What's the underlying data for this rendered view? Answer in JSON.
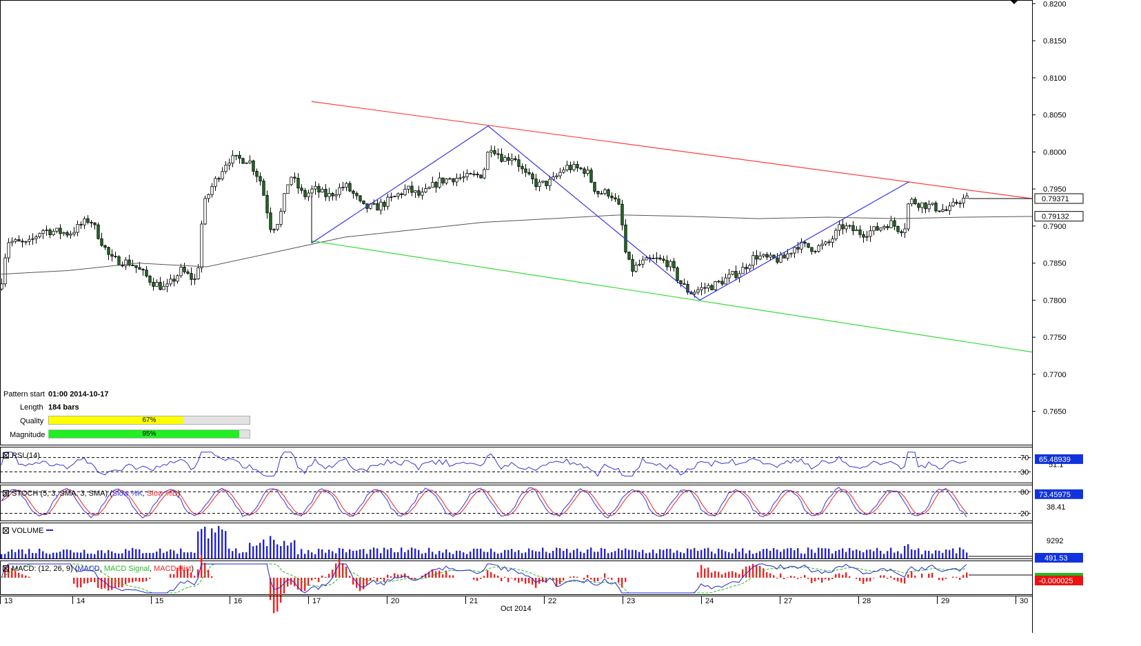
{
  "chart_data": {
    "type": "candlestick",
    "instrument_axis": {
      "ylim": [
        0.7605,
        0.8205
      ],
      "ticks": [
        "0.8200",
        "0.8150",
        "0.8100",
        "0.8050",
        "0.8000",
        "0.7950",
        "0.7900",
        "0.7850",
        "0.7800",
        "0.7750",
        "0.7700",
        "0.7650"
      ],
      "last_price": "0.79371",
      "ma_value": "0.79132"
    },
    "x_axis": {
      "day_labels": [
        "13",
        "14",
        "15",
        "16",
        "17",
        "20",
        "21",
        "22",
        "23",
        "24",
        "27",
        "28",
        "29",
        "30"
      ],
      "month_label": "Oct 2014"
    },
    "price_path": [
      [
        0,
        0.7815
      ],
      [
        10,
        0.788
      ],
      [
        40,
        0.7875
      ],
      [
        60,
        0.7895
      ],
      [
        100,
        0.789
      ],
      [
        130,
        0.791
      ],
      [
        160,
        0.7855
      ],
      [
        190,
        0.785
      ],
      [
        220,
        0.7825
      ],
      [
        240,
        0.7815
      ],
      [
        262,
        0.784
      ],
      [
        285,
        0.7825
      ],
      [
        294,
        0.7925
      ],
      [
        305,
        0.795
      ],
      [
        330,
        0.799
      ],
      [
        360,
        0.799
      ],
      [
        378,
        0.796
      ],
      [
        393,
        0.7895
      ],
      [
        405,
        0.791
      ],
      [
        420,
        0.797
      ],
      [
        440,
        0.794
      ],
      [
        455,
        0.795
      ],
      [
        475,
        0.794
      ],
      [
        500,
        0.7955
      ],
      [
        515,
        0.794
      ],
      [
        525,
        0.7925
      ],
      [
        545,
        0.7925
      ],
      [
        565,
        0.7935
      ],
      [
        590,
        0.795
      ],
      [
        610,
        0.794
      ],
      [
        635,
        0.796
      ],
      [
        655,
        0.7965
      ],
      [
        675,
        0.7965
      ],
      [
        700,
        0.797
      ],
      [
        710,
        0.801
      ],
      [
        730,
        0.799
      ],
      [
        745,
        0.7995
      ],
      [
        760,
        0.797
      ],
      [
        780,
        0.7955
      ],
      [
        800,
        0.796
      ],
      [
        820,
        0.798
      ],
      [
        850,
        0.7975
      ],
      [
        865,
        0.7945
      ],
      [
        885,
        0.7945
      ],
      [
        900,
        0.792
      ],
      [
        905,
        0.787
      ],
      [
        915,
        0.784
      ],
      [
        930,
        0.785
      ],
      [
        950,
        0.7855
      ],
      [
        970,
        0.785
      ],
      [
        985,
        0.7825
      ],
      [
        1000,
        0.781
      ],
      [
        1015,
        0.7815
      ],
      [
        1035,
        0.782
      ],
      [
        1055,
        0.783
      ],
      [
        1075,
        0.784
      ],
      [
        1095,
        0.786
      ],
      [
        1115,
        0.7855
      ],
      [
        1135,
        0.7855
      ],
      [
        1155,
        0.7875
      ],
      [
        1180,
        0.787
      ],
      [
        1200,
        0.7875
      ],
      [
        1220,
        0.79
      ],
      [
        1250,
        0.789
      ],
      [
        1270,
        0.7895
      ],
      [
        1290,
        0.7905
      ],
      [
        1305,
        0.7895
      ],
      [
        1312,
        0.79
      ],
      [
        1318,
        0.7935
      ],
      [
        1335,
        0.793
      ],
      [
        1355,
        0.7925
      ],
      [
        1375,
        0.792
      ],
      [
        1390,
        0.7935
      ],
      [
        1405,
        0.7937
      ]
    ],
    "moving_average": [
      [
        0,
        0.7835
      ],
      [
        100,
        0.784
      ],
      [
        200,
        0.785
      ],
      [
        300,
        0.7845
      ],
      [
        400,
        0.7865
      ],
      [
        500,
        0.7885
      ],
      [
        600,
        0.7895
      ],
      [
        700,
        0.7905
      ],
      [
        800,
        0.791
      ],
      [
        900,
        0.7915
      ],
      [
        1000,
        0.7913
      ],
      [
        1100,
        0.791
      ],
      [
        1200,
        0.7912
      ],
      [
        1300,
        0.791
      ],
      [
        1400,
        0.7912
      ],
      [
        1500,
        0.7913
      ]
    ],
    "channel": {
      "upper": {
        "from": [
          452,
          0.8068
        ],
        "to": [
          1497,
          0.7937
        ],
        "color": "#ff3c3c"
      },
      "lower": {
        "from": [
          452,
          0.788
        ],
        "to": [
          1497,
          0.773
        ],
        "color": "#33dd33"
      }
    },
    "zigzag": {
      "color": "#3333ee",
      "points": [
        [
          452,
          0.7877
        ],
        [
          452,
          0.7877
        ],
        [
          708,
          0.8035
        ],
        [
          1015,
          0.78
        ],
        [
          1319,
          0.796
        ]
      ]
    },
    "pattern_info": {
      "pattern_start_label": "Pattern start",
      "pattern_start": "01:00 2014-10-17",
      "length_label": "Length",
      "length": "184 bars",
      "quality_label": "Quality",
      "quality": "67%",
      "quality_fraction": 0.67,
      "magnitude_label": "Magnitude",
      "magnitude": "95%",
      "magnitude_fraction": 0.95
    },
    "indicators": {
      "rsi": {
        "label": "RSI (14)",
        "upper_level": "70",
        "lower_level": "30",
        "current": "65.48939",
        "extra_tick": "51.1"
      },
      "stoch": {
        "label_main": "STOCH (5, 3, SMA, 3, SMA) (",
        "label_k": "Slow %K",
        "label_sep": ", ",
        "label_d": "Slow %D",
        "label_end": ")",
        "upper_level": "80",
        "lower_level": "20",
        "current": "73.45975",
        "extra_tick": "38.41"
      },
      "volume": {
        "label": "VOLUME",
        "tick": "9292",
        "current": "491.53"
      },
      "macd": {
        "label_main": "MACD: (12, 26, 9) (",
        "label_macd": "MACD",
        "label_sep1": ", ",
        "label_signal": "MACD Signal",
        "label_sep2": ", ",
        "label_hist": "MACD Hist",
        "label_end": ")",
        "current": "-0.000025"
      }
    },
    "colors": {
      "bull": "#ffffff",
      "bear": "#1e6e1e",
      "wick": "#000000",
      "ma": "#555555",
      "rsi": "#3333dd",
      "stoch_k": "#3333dd",
      "stoch_d": "#ee2222",
      "volume": "#2222cc",
      "macd": "#2222cc",
      "macd_signal": "#22bb22",
      "macd_hist": "#ee2222",
      "last_price_box": "#1133dd"
    }
  }
}
